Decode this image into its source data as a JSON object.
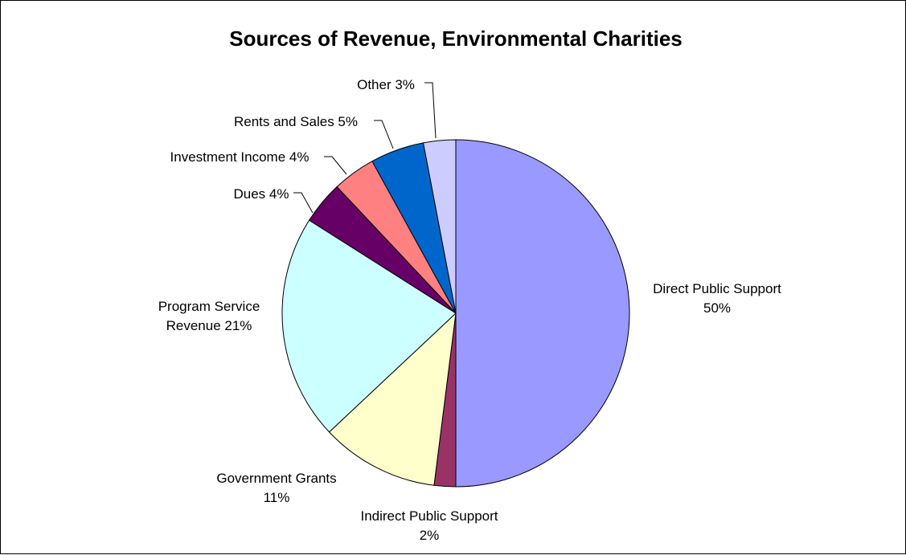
{
  "chart_data": {
    "type": "pie",
    "title": "Sources of Revenue, Environmental Charities",
    "slices": [
      {
        "key": "direct",
        "value": 50,
        "color": "#9999FF",
        "label_lines": [
          "Direct Public Support",
          "50%"
        ]
      },
      {
        "key": "indirect",
        "value": 2,
        "color": "#993366",
        "label_lines": [
          "Indirect Public Support",
          "2%"
        ]
      },
      {
        "key": "government",
        "value": 11,
        "color": "#FFFFCC",
        "label_lines": [
          "Government Grants",
          "11%"
        ]
      },
      {
        "key": "program",
        "value": 21,
        "color": "#CCFFFF",
        "label_lines": [
          "Program Service",
          "Revenue 21%"
        ]
      },
      {
        "key": "dues",
        "value": 4,
        "color": "#660066",
        "label_lines": [
          "Dues 4%"
        ]
      },
      {
        "key": "investment",
        "value": 4,
        "color": "#FF8080",
        "label_lines": [
          "Investment Income 4%"
        ]
      },
      {
        "key": "rents",
        "value": 5,
        "color": "#0066CC",
        "label_lines": [
          "Rents and Sales 5%"
        ]
      },
      {
        "key": "other",
        "value": 3,
        "color": "#CCCCFF",
        "label_lines": [
          "Other 3%"
        ]
      }
    ]
  }
}
